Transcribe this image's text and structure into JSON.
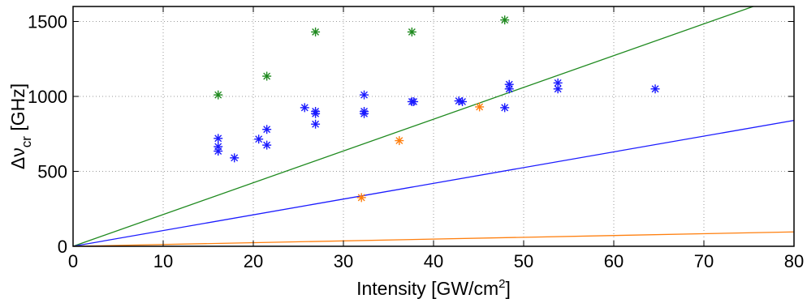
{
  "chart_data": {
    "type": "scatter",
    "title": "",
    "xlabel": {
      "main": "Intensity [GW/cm",
      "sup": "2",
      "tail": "]"
    },
    "ylabel": {
      "main": "Δν",
      "sub": "cr",
      "tail": " [GHz]"
    },
    "xlim": [
      0,
      80
    ],
    "ylim": [
      0,
      1600
    ],
    "xticks": [
      0,
      10,
      20,
      30,
      40,
      50,
      60,
      70,
      80
    ],
    "yticks": [
      0,
      500,
      1000,
      1500
    ],
    "grid": true,
    "lines": [
      {
        "color": "#1f8a1f",
        "slope": 21.2
      },
      {
        "color": "#1a1aff",
        "slope": 10.5
      },
      {
        "color": "#ff7f0e",
        "slope": 1.2
      }
    ],
    "series": [
      {
        "color": "#1f8a1f",
        "marker": "asterisk",
        "points": [
          [
            16.1,
            1010
          ],
          [
            21.5,
            1135
          ],
          [
            26.9,
            1430
          ],
          [
            37.6,
            1430
          ],
          [
            47.9,
            1510
          ]
        ]
      },
      {
        "color": "#1a1aff",
        "marker": "asterisk",
        "points": [
          [
            16.1,
            720
          ],
          [
            16.1,
            665
          ],
          [
            16.1,
            635
          ],
          [
            17.9,
            590
          ],
          [
            20.6,
            715
          ],
          [
            21.5,
            780
          ],
          [
            21.5,
            675
          ],
          [
            25.7,
            925
          ],
          [
            26.9,
            900
          ],
          [
            26.9,
            885
          ],
          [
            26.9,
            815
          ],
          [
            32.3,
            1010
          ],
          [
            32.3,
            900
          ],
          [
            32.3,
            885
          ],
          [
            37.6,
            965
          ],
          [
            37.8,
            965
          ],
          [
            42.8,
            970
          ],
          [
            43.2,
            965
          ],
          [
            47.9,
            925
          ],
          [
            48.4,
            1080
          ],
          [
            48.4,
            1050
          ],
          [
            53.8,
            1090
          ],
          [
            53.8,
            1050
          ],
          [
            64.6,
            1050
          ]
        ]
      },
      {
        "color": "#ff7f0e",
        "marker": "asterisk",
        "points": [
          [
            32.0,
            325
          ],
          [
            36.2,
            705
          ],
          [
            45.1,
            930
          ]
        ]
      }
    ]
  }
}
